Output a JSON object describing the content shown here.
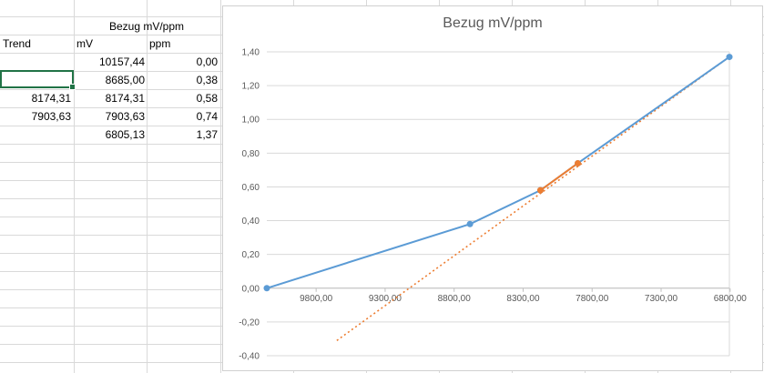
{
  "sheet": {
    "title": "Bezug mV/ppm",
    "headers": {
      "trend": "Trend",
      "mv": "mV",
      "ppm": "ppm"
    },
    "rows": [
      {
        "trend": "",
        "mv": "10157,44",
        "ppm": "0,00"
      },
      {
        "trend": "",
        "mv": "8685,00",
        "ppm": "0,38"
      },
      {
        "trend": "8174,31",
        "mv": "8174,31",
        "ppm": "0,58"
      },
      {
        "trend": "7903,63",
        "mv": "7903,63",
        "ppm": "0,74"
      },
      {
        "trend": "",
        "mv": "6805,13",
        "ppm": "1,37"
      }
    ]
  },
  "chart_data": {
    "type": "scatter",
    "title": "Bezug mV/ppm",
    "xlim": [
      10157.44,
      6805.13
    ],
    "x_reversed": true,
    "ylim": [
      -0.4,
      1.4
    ],
    "x_ticks": [
      "9800,00",
      "9300,00",
      "8800,00",
      "8300,00",
      "7800,00",
      "7300,00",
      "6800,00"
    ],
    "x_tick_values": [
      9800,
      9300,
      8800,
      8300,
      7800,
      7300,
      6800
    ],
    "y_ticks": [
      "1,40",
      "1,20",
      "1,00",
      "0,80",
      "0,60",
      "0,40",
      "0,20",
      "0,00",
      "-0,20",
      "-0,40"
    ],
    "y_tick_values": [
      1.4,
      1.2,
      1.0,
      0.8,
      0.6,
      0.4,
      0.2,
      0.0,
      -0.2,
      -0.4
    ],
    "grid": true,
    "series": [
      {
        "x": [
          10157.44,
          8685.0,
          8174.31,
          7903.63,
          6805.13
        ],
        "y": [
          0.0,
          0.38,
          0.58,
          0.74,
          1.37
        ],
        "color": "#5b9bd5"
      },
      {
        "x": [
          8174.31,
          7903.63
        ],
        "y": [
          0.58,
          0.74
        ],
        "color": "#ed7d31"
      }
    ],
    "trendline": {
      "x": [
        9650,
        6805.13
      ],
      "y": [
        -0.31,
        1.37
      ],
      "color": "#ed7d31",
      "style": "dotted"
    }
  },
  "colors": {
    "gridline": "#d9d9d9",
    "selection": "#217346",
    "series1": "#5b9bd5",
    "series2": "#ed7d31"
  }
}
